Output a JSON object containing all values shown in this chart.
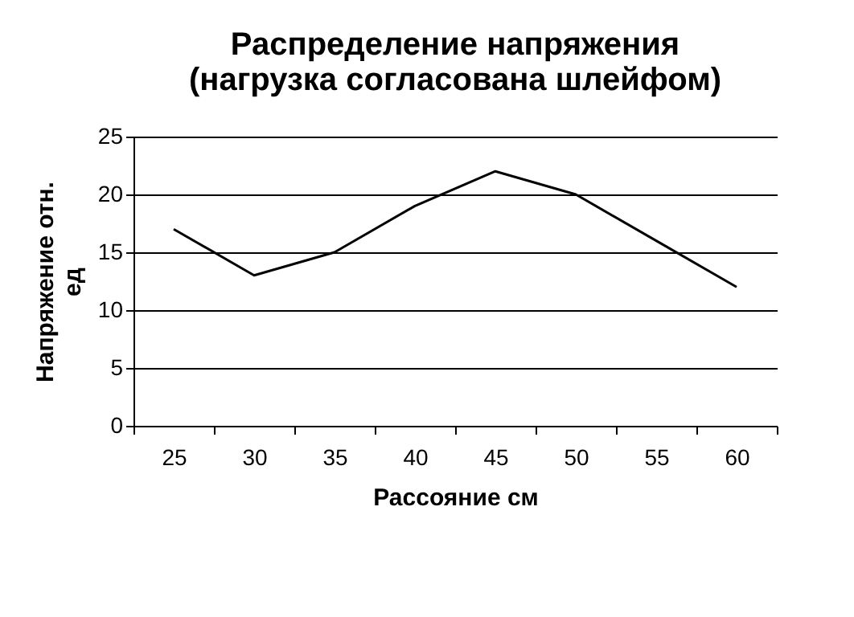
{
  "chart_data": {
    "type": "line",
    "title": "Распределение напряжения (нагрузка согласована шлейфом)",
    "xlabel": "Рассояние см",
    "ylabel": "Напряжение отн. ед",
    "categories": [
      "25",
      "30",
      "35",
      "40",
      "45",
      "50",
      "55",
      "60"
    ],
    "series": [
      {
        "color": "#000000",
        "values": [
          17,
          13,
          15,
          19,
          22,
          20,
          16,
          12
        ]
      }
    ],
    "ylim": [
      0,
      25
    ],
    "yticks": [
      0,
      5,
      10,
      15,
      20,
      25
    ],
    "grid": "y",
    "legend": false,
    "marker": "none",
    "line_style": "solid"
  }
}
